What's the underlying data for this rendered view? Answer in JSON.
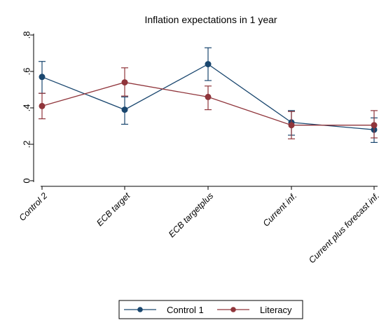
{
  "chart_data": {
    "type": "line",
    "title": "Inflation expectations in 1 year",
    "xlabel": "",
    "ylabel": "",
    "categories": [
      "Control 2",
      "ECB target",
      "ECB targetplus",
      "Current inf.",
      "Current plus forecast inf."
    ],
    "ylim": [
      0,
      0.8
    ],
    "yticks": [
      0,
      0.2,
      0.4,
      0.6,
      0.8
    ],
    "ytick_labels": [
      "0",
      ".2",
      ".4",
      ".6",
      ".8"
    ],
    "grid": false,
    "legend_position": "bottom",
    "error_bars": true,
    "series": [
      {
        "name": "Control 1",
        "color": "#1a476f",
        "values": [
          0.57,
          0.39,
          0.64,
          0.32,
          0.28
        ],
        "lower": [
          0.48,
          0.31,
          0.55,
          0.25,
          0.21
        ],
        "upper": [
          0.655,
          0.46,
          0.73,
          0.385,
          0.345
        ]
      },
      {
        "name": "Literacy",
        "color": "#90353b",
        "values": [
          0.41,
          0.54,
          0.46,
          0.305,
          0.305
        ],
        "lower": [
          0.34,
          0.465,
          0.39,
          0.23,
          0.235
        ],
        "upper": [
          0.48,
          0.62,
          0.52,
          0.38,
          0.385
        ]
      }
    ]
  }
}
